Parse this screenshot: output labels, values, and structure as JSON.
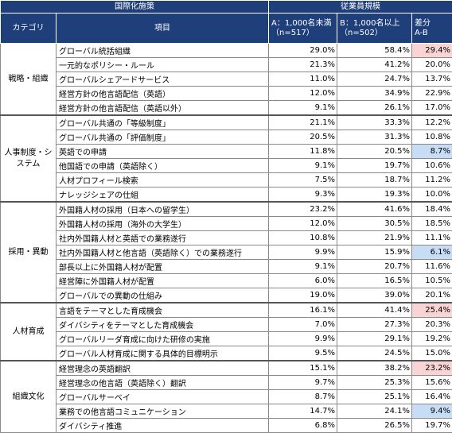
{
  "header": {
    "policy": "国際化施策",
    "scale": "従業員規模",
    "category": "カテゴリ",
    "item": "項目",
    "colA": "A：1,000名未満\n（n=517）",
    "colB": "B：1,000名以上\n（n=502）",
    "diff": "差分\nA-B"
  },
  "highlight_colors": {
    "pink": "#f9d4d4",
    "blue": "#c7dcf5",
    "header": "#1f3f7a"
  },
  "groups": [
    {
      "category": "戦略・組織",
      "rows": [
        {
          "item": "グローバル統括組織",
          "a": "29.0%",
          "b": "58.4%",
          "diff": "29.4%",
          "hl": "pink"
        },
        {
          "item": "一元的なポリシー・ルール",
          "a": "21.3%",
          "b": "41.2%",
          "diff": "20.0%",
          "hl": ""
        },
        {
          "item": "グローバルシェアードサービス",
          "a": "11.0%",
          "b": "24.7%",
          "diff": "13.7%",
          "hl": ""
        },
        {
          "item": "経営方針の他言語配信（英語）",
          "a": "12.0%",
          "b": "34.9%",
          "diff": "22.9%",
          "hl": ""
        },
        {
          "item": "経営方針の他言語配信（英語以外）",
          "a": "9.1%",
          "b": "26.1%",
          "diff": "17.0%",
          "hl": ""
        }
      ]
    },
    {
      "category": "人事制度・システム",
      "rows": [
        {
          "item": "グローバル共通の「等級制度」",
          "a": "21.1%",
          "b": "33.3%",
          "diff": "12.2%",
          "hl": ""
        },
        {
          "item": "グローバル共通の「評価制度」",
          "a": "20.5%",
          "b": "31.3%",
          "diff": "10.8%",
          "hl": ""
        },
        {
          "item": "英語での申請",
          "a": "11.8%",
          "b": "20.5%",
          "diff": "8.7%",
          "hl": "blue"
        },
        {
          "item": "他国語での申請（英語除く）",
          "a": "9.1%",
          "b": "19.7%",
          "diff": "10.6%",
          "hl": ""
        },
        {
          "item": "人材プロフィール検索",
          "a": "7.5%",
          "b": "18.7%",
          "diff": "11.2%",
          "hl": ""
        },
        {
          "item": "ナレッジシェアの仕組",
          "a": "9.3%",
          "b": "19.3%",
          "diff": "10.0%",
          "hl": ""
        }
      ]
    },
    {
      "category": "採用・異動",
      "rows": [
        {
          "item": "外国籍人材の採用（日本への留学生）",
          "a": "23.2%",
          "b": "41.6%",
          "diff": "18.4%",
          "hl": ""
        },
        {
          "item": "外国籍人材の採用（海外の大学生）",
          "a": "12.0%",
          "b": "30.5%",
          "diff": "18.5%",
          "hl": ""
        },
        {
          "item": "社内外国籍人材と英語での業務遂行",
          "a": "10.8%",
          "b": "21.9%",
          "diff": "11.1%",
          "hl": ""
        },
        {
          "item": "社内外国籍人材と他言語（英語除く）での業務遂行",
          "a": "9.9%",
          "b": "15.9%",
          "diff": "6.1%",
          "hl": "blue"
        },
        {
          "item": "部長以上に外国籍人材が配置",
          "a": "9.1%",
          "b": "20.7%",
          "diff": "11.6%",
          "hl": ""
        },
        {
          "item": "経営陣に外国籍人材が配置",
          "a": "6.0%",
          "b": "16.5%",
          "diff": "10.5%",
          "hl": ""
        },
        {
          "item": "グローバルでの異動の仕組み",
          "a": "19.0%",
          "b": "39.0%",
          "diff": "20.1%",
          "hl": ""
        }
      ]
    },
    {
      "category": "人材育成",
      "rows": [
        {
          "item": "言語をテーマとした育成機会",
          "a": "16.1%",
          "b": "41.4%",
          "diff": "25.4%",
          "hl": "pink"
        },
        {
          "item": "ダイバシティをテーマとした育成機会",
          "a": "7.0%",
          "b": "27.3%",
          "diff": "20.3%",
          "hl": ""
        },
        {
          "item": "グローバルリーダ育成に向けた研修の実施",
          "a": "9.9%",
          "b": "29.1%",
          "diff": "19.2%",
          "hl": ""
        },
        {
          "item": "グローバル人材育成に関する具体的目標明示",
          "a": "9.5%",
          "b": "24.5%",
          "diff": "15.0%",
          "hl": ""
        }
      ]
    },
    {
      "category": "組織文化",
      "rows": [
        {
          "item": "経営理念の英語翻訳",
          "a": "15.1%",
          "b": "38.2%",
          "diff": "23.2%",
          "hl": "pink"
        },
        {
          "item": "経営理念の他言語（英語除く）翻訳",
          "a": "9.7%",
          "b": "25.3%",
          "diff": "15.6%",
          "hl": ""
        },
        {
          "item": "グローバルサーベイ",
          "a": "8.7%",
          "b": "25.1%",
          "diff": "16.4%",
          "hl": ""
        },
        {
          "item": "業務での他言語コミュニケーション",
          "a": "14.7%",
          "b": "24.1%",
          "diff": "9.4%",
          "hl": "blue"
        },
        {
          "item": "ダイバシティ推進",
          "a": "6.8%",
          "b": "26.5%",
          "diff": "19.7%",
          "hl": ""
        }
      ]
    }
  ]
}
